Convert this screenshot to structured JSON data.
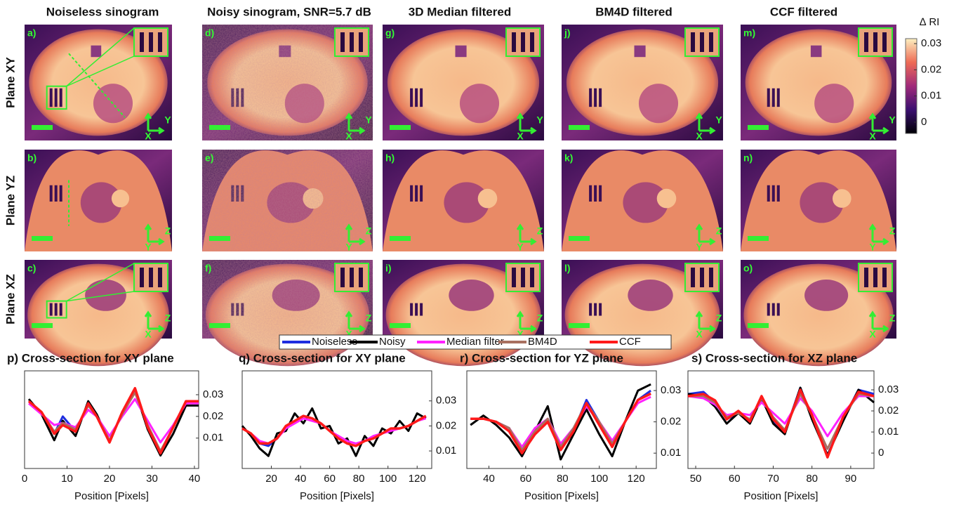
{
  "images": {
    "columns": [
      "Noiseless sinogram",
      "Noisy sinogram, SNR=5.7 dB",
      "3D Median filtered",
      "BM4D filtered",
      "CCF filtered"
    ],
    "rows": [
      "Plane XY",
      "Plane YZ",
      "Plane XZ"
    ],
    "panels": [
      [
        {
          "label": "a)",
          "axes": [
            "X",
            "Y"
          ]
        },
        {
          "label": "d)",
          "axes": [
            "X",
            "Y"
          ]
        },
        {
          "label": "g)",
          "axes": [
            "X",
            "Y"
          ]
        },
        {
          "label": "j)",
          "axes": [
            "X",
            "Y"
          ]
        },
        {
          "label": "m)",
          "axes": [
            "X",
            "Y"
          ]
        }
      ],
      [
        {
          "label": "b)",
          "axes": [
            "Y",
            "Z"
          ]
        },
        {
          "label": "e)",
          "axes": [
            "Y",
            "Z"
          ]
        },
        {
          "label": "h)",
          "axes": [
            "Y",
            "Z"
          ]
        },
        {
          "label": "k)",
          "axes": [
            "Y",
            "Z"
          ]
        },
        {
          "label": "n)",
          "axes": [
            "Y",
            "Z"
          ]
        }
      ],
      [
        {
          "label": "c)",
          "axes": [
            "X",
            "Z"
          ]
        },
        {
          "label": "f)",
          "axes": [
            "X",
            "Z"
          ]
        },
        {
          "label": "i)",
          "axes": [
            "X",
            "Z"
          ]
        },
        {
          "label": "l)",
          "axes": [
            "X",
            "Z"
          ]
        },
        {
          "label": "o)",
          "axes": [
            "X",
            "Z"
          ]
        }
      ]
    ],
    "colorbar": {
      "title": "∆ RI",
      "lim": [
        -0.0043,
        0.0319
      ],
      "ticks": [
        0,
        0.01,
        0.02,
        0.03
      ]
    }
  },
  "legend": [
    {
      "name": "Noiseless",
      "color": "#1f2ee0"
    },
    {
      "name": "Noisy",
      "color": "#000000"
    },
    {
      "name": "Median filter",
      "color": "#ff22ff"
    },
    {
      "name": "BM4D",
      "color": "#a87060"
    },
    {
      "name": "CCF",
      "color": "#ff1a1a"
    }
  ],
  "chart_data": [
    {
      "type": "line",
      "title": "p) Cross-section for XY plane",
      "x_label": "Position [Pixels]",
      "x": [
        1,
        4,
        7,
        9,
        12,
        15,
        17,
        20,
        23,
        26,
        29,
        32,
        35,
        38,
        41
      ],
      "xlim": [
        0,
        41
      ],
      "xticks": [
        0,
        10,
        20,
        30,
        40
      ],
      "ylim": [
        -0.004,
        0.041
      ],
      "yticks": [
        0.01,
        0.02,
        0.03
      ],
      "series": [
        {
          "values": [
            0.027,
            0.022,
            0.012,
            0.02,
            0.013,
            0.026,
            0.02,
            0.008,
            0.022,
            0.032,
            0.015,
            0.003,
            0.015,
            0.027,
            0.027
          ]
        },
        {
          "values": [
            0.028,
            0.021,
            0.009,
            0.018,
            0.011,
            0.027,
            0.021,
            0.008,
            0.022,
            0.032,
            0.014,
            0.002,
            0.012,
            0.025,
            0.025
          ]
        },
        {
          "values": [
            0.026,
            0.021,
            0.016,
            0.017,
            0.015,
            0.023,
            0.02,
            0.011,
            0.02,
            0.028,
            0.018,
            0.008,
            0.016,
            0.026,
            0.026
          ]
        },
        {
          "values": [
            0.027,
            0.022,
            0.013,
            0.017,
            0.014,
            0.025,
            0.02,
            0.009,
            0.021,
            0.031,
            0.016,
            0.004,
            0.015,
            0.027,
            0.027
          ]
        },
        {
          "values": [
            0.027,
            0.022,
            0.012,
            0.016,
            0.013,
            0.026,
            0.02,
            0.008,
            0.022,
            0.033,
            0.015,
            0.003,
            0.015,
            0.027,
            0.027
          ]
        }
      ]
    },
    {
      "type": "line",
      "title": "q) Cross-section for XY plane",
      "x_label": "Position [Pixels]",
      "x": [
        0,
        6,
        12,
        18,
        24,
        30,
        36,
        42,
        48,
        54,
        60,
        66,
        72,
        78,
        84,
        90,
        96,
        102,
        108,
        114,
        120,
        126
      ],
      "xlim": [
        0,
        130
      ],
      "xticks": [
        20,
        40,
        60,
        80,
        100,
        120
      ],
      "ylim": [
        0.003,
        0.042
      ],
      "yticks": [
        0.01,
        0.02,
        0.03
      ],
      "series": [
        {
          "values": [
            0.019,
            0.017,
            0.013,
            0.012,
            0.015,
            0.02,
            0.022,
            0.024,
            0.023,
            0.021,
            0.018,
            0.015,
            0.013,
            0.012,
            0.014,
            0.015,
            0.017,
            0.019,
            0.019,
            0.02,
            0.022,
            0.024
          ]
        },
        {
          "values": [
            0.02,
            0.016,
            0.011,
            0.008,
            0.017,
            0.018,
            0.025,
            0.021,
            0.027,
            0.019,
            0.02,
            0.013,
            0.015,
            0.008,
            0.016,
            0.012,
            0.019,
            0.017,
            0.022,
            0.018,
            0.025,
            0.023
          ]
        },
        {
          "values": [
            0.019,
            0.017,
            0.014,
            0.013,
            0.015,
            0.019,
            0.021,
            0.023,
            0.022,
            0.021,
            0.018,
            0.016,
            0.014,
            0.013,
            0.014,
            0.016,
            0.017,
            0.018,
            0.019,
            0.02,
            0.022,
            0.023
          ]
        },
        {
          "values": [
            0.019,
            0.017,
            0.013,
            0.013,
            0.015,
            0.02,
            0.022,
            0.024,
            0.023,
            0.021,
            0.018,
            0.015,
            0.013,
            0.012,
            0.014,
            0.015,
            0.017,
            0.019,
            0.019,
            0.02,
            0.022,
            0.024
          ]
        },
        {
          "values": [
            0.019,
            0.017,
            0.013,
            0.013,
            0.015,
            0.02,
            0.022,
            0.024,
            0.023,
            0.021,
            0.018,
            0.015,
            0.013,
            0.012,
            0.014,
            0.015,
            0.017,
            0.019,
            0.019,
            0.02,
            0.022,
            0.024
          ]
        }
      ]
    },
    {
      "type": "line",
      "title": "r) Cross-section for YZ plane",
      "x_label": "Position [Pixels]",
      "x": [
        30,
        37,
        44,
        51,
        58,
        65,
        72,
        79,
        86,
        93,
        100,
        107,
        114,
        121,
        128
      ],
      "xlim": [
        28,
        131
      ],
      "xticks": [
        40,
        60,
        80,
        100,
        120
      ],
      "ylim": [
        0.0051,
        0.0363
      ],
      "yticks": [
        0.01,
        0.02,
        0.03
      ],
      "series": [
        {
          "values": [
            0.021,
            0.021,
            0.02,
            0.018,
            0.01,
            0.016,
            0.02,
            0.011,
            0.017,
            0.027,
            0.02,
            0.012,
            0.02,
            0.027,
            0.03
          ]
        },
        {
          "values": [
            0.019,
            0.022,
            0.019,
            0.015,
            0.009,
            0.017,
            0.025,
            0.008,
            0.016,
            0.024,
            0.016,
            0.009,
            0.02,
            0.03,
            0.032
          ]
        },
        {
          "values": [
            0.021,
            0.021,
            0.02,
            0.018,
            0.012,
            0.018,
            0.021,
            0.013,
            0.018,
            0.025,
            0.02,
            0.014,
            0.02,
            0.026,
            0.028
          ]
        },
        {
          "values": [
            0.021,
            0.021,
            0.02,
            0.018,
            0.011,
            0.017,
            0.021,
            0.012,
            0.018,
            0.026,
            0.02,
            0.013,
            0.02,
            0.027,
            0.029
          ]
        },
        {
          "values": [
            0.021,
            0.021,
            0.02,
            0.017,
            0.01,
            0.016,
            0.02,
            0.011,
            0.017,
            0.026,
            0.019,
            0.012,
            0.02,
            0.027,
            0.029
          ]
        }
      ]
    },
    {
      "type": "line",
      "title": "s) Cross-section for XZ plane",
      "x_label": "Position [Pixels]",
      "x": [
        48,
        52,
        55,
        58,
        61,
        64,
        67,
        70,
        73,
        77,
        80,
        84,
        88,
        92,
        96
      ],
      "xlim": [
        48,
        96
      ],
      "xticks": [
        50,
        60,
        70,
        80,
        90
      ],
      "ylim": [
        -0.0073,
        0.039
      ],
      "yticks": [
        0,
        0.01,
        0.02,
        0.03
      ],
      "series": [
        {
          "values": [
            0.028,
            0.029,
            0.024,
            0.016,
            0.019,
            0.015,
            0.027,
            0.015,
            0.01,
            0.031,
            0.017,
            -0.001,
            0.016,
            0.03,
            0.028
          ]
        },
        {
          "values": [
            0.028,
            0.027,
            0.022,
            0.014,
            0.019,
            0.014,
            0.026,
            0.014,
            0.009,
            0.031,
            0.016,
            -0.001,
            0.015,
            0.03,
            0.024
          ]
        },
        {
          "values": [
            0.027,
            0.026,
            0.023,
            0.018,
            0.019,
            0.018,
            0.024,
            0.019,
            0.014,
            0.026,
            0.02,
            0.008,
            0.019,
            0.027,
            0.027
          ]
        },
        {
          "values": [
            0.027,
            0.027,
            0.024,
            0.017,
            0.019,
            0.016,
            0.026,
            0.017,
            0.011,
            0.028,
            0.018,
            0.002,
            0.017,
            0.028,
            0.027
          ]
        },
        {
          "values": [
            0.027,
            0.028,
            0.025,
            0.016,
            0.02,
            0.015,
            0.027,
            0.016,
            0.01,
            0.03,
            0.018,
            -0.002,
            0.017,
            0.029,
            0.027
          ]
        }
      ]
    }
  ]
}
